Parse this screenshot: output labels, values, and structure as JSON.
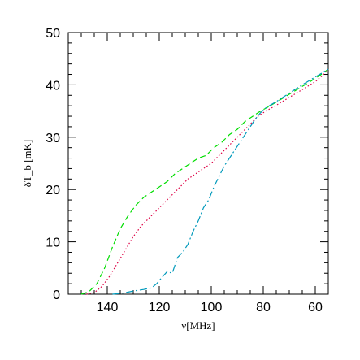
{
  "chart_data": {
    "type": "line",
    "xlabel": "ν[MHz]",
    "ylabel": "δT_b [mK]",
    "xlim": [
      155,
      55
    ],
    "ylim": [
      0,
      50
    ],
    "x_reversed": true,
    "grid": false,
    "x_ticks": [
      140,
      120,
      100,
      80,
      60
    ],
    "y_ticks": [
      0,
      10,
      20,
      30,
      40,
      50
    ],
    "series": [
      {
        "style": "dashed",
        "color": "#00dd00",
        "x": [
          150,
          147,
          144,
          141,
          138,
          135,
          132,
          129,
          126,
          123,
          120,
          117,
          114,
          111,
          108,
          105,
          102,
          99,
          96,
          93,
          90,
          87,
          84,
          81,
          78,
          74,
          70,
          66,
          62,
          58,
          55
        ],
        "y": [
          0,
          0.5,
          2,
          5,
          9,
          12.5,
          15,
          17,
          18.5,
          19.5,
          20.5,
          21.5,
          23,
          24,
          25,
          26,
          26.5,
          28,
          29,
          30.5,
          31.5,
          33,
          34,
          35,
          35.8,
          37,
          38.2,
          39.4,
          40.6,
          41.9,
          43
        ]
      },
      {
        "style": "dotted",
        "color": "#dd0044",
        "x": [
          148,
          145,
          142,
          139,
          136,
          133,
          130,
          127,
          124,
          121,
          118,
          115,
          112,
          109,
          106,
          103,
          100,
          97,
          94,
          91,
          88,
          85,
          82,
          79,
          76,
          72,
          68,
          64,
          60,
          57,
          55
        ],
        "y": [
          0,
          0.3,
          1.5,
          3.5,
          6,
          8.5,
          11,
          13,
          14.5,
          16,
          17.5,
          19,
          20.5,
          22,
          23,
          24,
          25,
          26.5,
          28,
          29.5,
          31,
          32.5,
          34,
          35,
          35.8,
          37,
          38.2,
          39.4,
          40.6,
          41.9,
          43
        ]
      },
      {
        "style": "dash-dot",
        "color": "#0099bb",
        "x": [
          138,
          134,
          130,
          126,
          123,
          121,
          119,
          117,
          115,
          113,
          111,
          109,
          107,
          105,
          103,
          101,
          99,
          97,
          95,
          93,
          91,
          89,
          87,
          85,
          83,
          81,
          79,
          75,
          70,
          65,
          60,
          55
        ],
        "y": [
          0,
          0.2,
          0.6,
          0.9,
          1.2,
          2,
          3.2,
          4.3,
          4,
          7,
          8,
          9.5,
          12,
          14,
          16.5,
          18,
          20.5,
          22.5,
          24.5,
          26,
          27.5,
          29,
          30.5,
          32,
          33.5,
          34.7,
          35.6,
          36.8,
          38.4,
          40,
          41.5,
          43
        ]
      }
    ]
  }
}
